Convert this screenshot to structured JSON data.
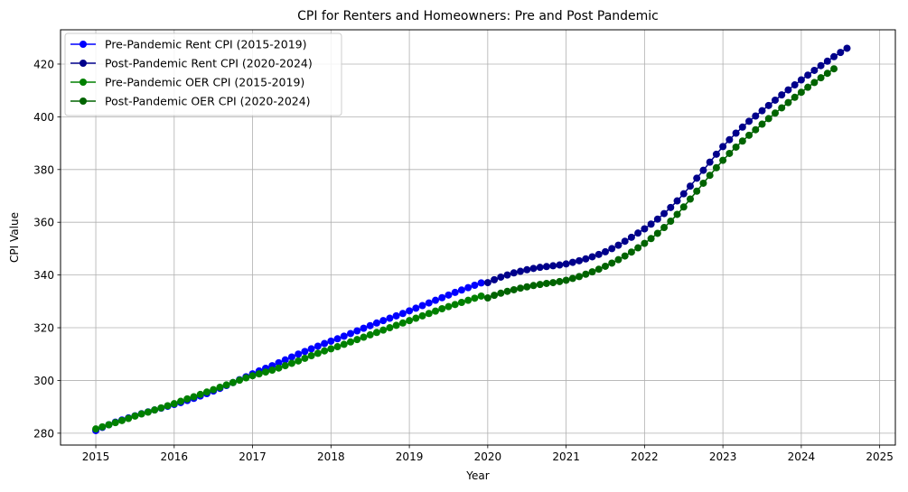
{
  "chart_data": {
    "type": "line",
    "title": "CPI for Renters and Homeowners: Pre and Post Pandemic",
    "xlabel": "Year",
    "ylabel": "CPI Value",
    "xlim": [
      2014.55,
      2025.2
    ],
    "ylim": [
      275.5,
      433
    ],
    "x_ticks": [
      2015,
      2016,
      2017,
      2018,
      2019,
      2020,
      2021,
      2022,
      2023,
      2024,
      2025
    ],
    "y_ticks": [
      280,
      300,
      320,
      340,
      360,
      380,
      400,
      420
    ],
    "grid": true,
    "legend_position": "top-left",
    "series": [
      {
        "name": "Pre-Pandemic Rent CPI (2015-2019)",
        "color": "#0000ff",
        "x_start": 2015,
        "x_step_months": 1,
        "values": [
          281.0,
          282.2,
          283.2,
          284.2,
          285.0,
          285.8,
          286.6,
          287.4,
          288.1,
          288.8,
          289.5,
          290.2,
          290.9,
          291.6,
          292.4,
          293.2,
          294.1,
          295.0,
          296.0,
          297.0,
          298.1,
          299.2,
          300.3,
          301.4,
          302.5,
          303.6,
          304.6,
          305.6,
          306.7,
          307.8,
          308.9,
          310.0,
          311.0,
          312.0,
          313.0,
          314.0,
          314.9,
          315.8,
          316.8,
          317.8,
          318.8,
          319.8,
          320.8,
          321.8,
          322.7,
          323.6,
          324.5,
          325.4,
          326.4,
          327.4,
          328.4,
          329.4,
          330.4,
          331.4,
          332.4,
          333.4,
          334.3,
          335.2,
          336.1,
          337.0
        ]
      },
      {
        "name": "Post-Pandemic Rent CPI (2020-2024)",
        "color": "#00008b",
        "x_start": 2020,
        "x_step_months": 1,
        "values": [
          337.1,
          338.2,
          339.2,
          340.0,
          340.8,
          341.4,
          342.0,
          342.5,
          342.9,
          343.2,
          343.5,
          343.8,
          344.2,
          344.8,
          345.4,
          346.1,
          346.9,
          347.8,
          348.8,
          350.0,
          351.3,
          352.8,
          354.3,
          355.9,
          357.5,
          359.3,
          361.2,
          363.3,
          365.6,
          368.1,
          370.8,
          373.7,
          376.7,
          379.7,
          382.8,
          385.8,
          388.7,
          391.3,
          393.8,
          396.1,
          398.3,
          400.3,
          402.3,
          404.3,
          406.3,
          408.3,
          410.2,
          412.1,
          414.0,
          415.8,
          417.6,
          419.4,
          421.1,
          422.8,
          424.4,
          426.0
        ]
      },
      {
        "name": "Pre-Pandemic OER CPI (2015-2019)",
        "color": "#008000",
        "x_start": 2015,
        "x_step_months": 1,
        "values": [
          281.6,
          282.4,
          283.2,
          284.0,
          284.8,
          285.6,
          286.5,
          287.3,
          288.0,
          288.8,
          289.6,
          290.4,
          291.2,
          292.1,
          293.0,
          293.8,
          294.7,
          295.6,
          296.5,
          297.4,
          298.3,
          299.2,
          300.1,
          301.0,
          301.8,
          302.5,
          303.2,
          303.9,
          304.7,
          305.6,
          306.5,
          307.4,
          308.4,
          309.4,
          310.3,
          311.2,
          312.0,
          312.8,
          313.7,
          314.6,
          315.5,
          316.4,
          317.3,
          318.2,
          319.1,
          320.0,
          320.9,
          321.8,
          322.7,
          323.6,
          324.5,
          325.4,
          326.3,
          327.2,
          328.0,
          328.8,
          329.6,
          330.4,
          331.2,
          332.0
        ]
      },
      {
        "name": "Post-Pandemic OER CPI (2020-2024)",
        "color": "#006400",
        "x_start": 2020,
        "x_step_months": 1,
        "values": [
          331.3,
          332.3,
          333.1,
          333.8,
          334.4,
          335.0,
          335.5,
          336.0,
          336.4,
          336.8,
          337.1,
          337.5,
          338.0,
          338.7,
          339.4,
          340.3,
          341.2,
          342.2,
          343.3,
          344.5,
          345.8,
          347.2,
          348.7,
          350.3,
          352.0,
          353.8,
          355.8,
          358.0,
          360.4,
          363.0,
          365.8,
          368.8,
          371.8,
          374.8,
          377.8,
          380.7,
          383.5,
          386.1,
          388.5,
          390.8,
          393.0,
          395.1,
          397.2,
          399.3,
          401.4,
          403.4,
          405.4,
          407.4,
          409.3,
          411.2,
          413.0,
          414.8,
          416.5,
          418.2
        ]
      }
    ]
  }
}
